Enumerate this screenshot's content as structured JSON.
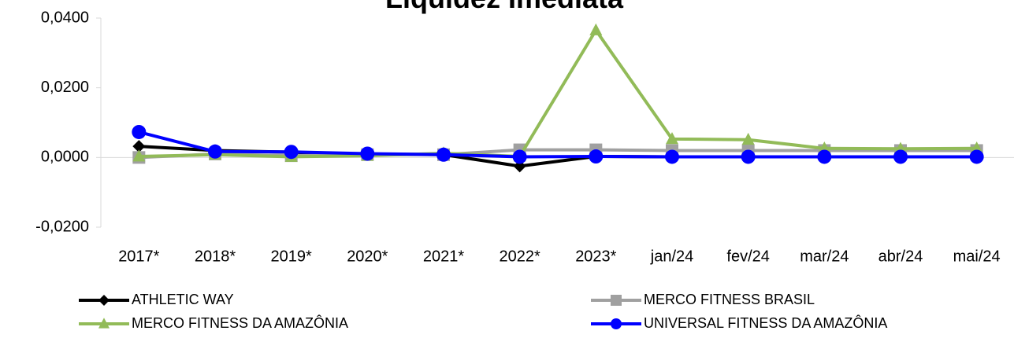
{
  "chart_data": {
    "type": "line",
    "title": "Liquidez Imediata",
    "categories": [
      "2017*",
      "2018*",
      "2019*",
      "2020*",
      "2021*",
      "2022*",
      "2023*",
      "jan/24",
      "fev/24",
      "mar/24",
      "abr/24",
      "mai/24"
    ],
    "ylim": [
      -0.02,
      0.04
    ],
    "yticks": [
      {
        "value": -0.02,
        "label": "-0,0200"
      },
      {
        "value": 0,
        "label": "0,0000"
      },
      {
        "value": 0.02,
        "label": "0,0200"
      },
      {
        "value": 0.04,
        "label": "0,0400"
      }
    ],
    "series": [
      {
        "name": "ATHLETIC WAY",
        "color": "#000000",
        "marker": "diamond",
        "values": [
          0.0032,
          0.002,
          0.0015,
          0.001,
          0.0008,
          -0.0025,
          0.0003,
          0.0002,
          0.0002,
          0.0002,
          0.0002,
          0.0002
        ]
      },
      {
        "name": "MERCO FITNESS BRASIL",
        "color": "#a0a0a0",
        "marker": "square",
        "values": [
          0.0,
          0.001,
          0.0005,
          0.0008,
          0.0008,
          0.0022,
          0.0022,
          0.002,
          0.002,
          0.002,
          0.002,
          0.002
        ]
      },
      {
        "name": "MERCO FITNESS DA AMAZÔNIA",
        "color": "#92bb58",
        "marker": "triangle",
        "values": [
          0.0003,
          0.0008,
          0.0002,
          0.0005,
          0.0012,
          0.0003,
          0.0365,
          0.0053,
          0.0051,
          0.0026,
          0.0025,
          0.0026
        ]
      },
      {
        "name": "UNIVERSAL FITNESS DA AMAZÔNIA",
        "color": "#0000ff",
        "marker": "circle",
        "values": [
          0.0073,
          0.0017,
          0.0016,
          0.0011,
          0.0008,
          0.0002,
          0.0003,
          0.0002,
          0.0002,
          0.0002,
          0.0002,
          0.0002
        ]
      }
    ]
  }
}
